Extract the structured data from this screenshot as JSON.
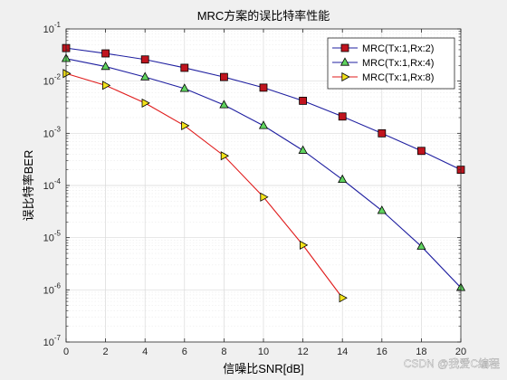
{
  "chart_data": {
    "type": "line",
    "title": "MRC方案的误比特率性能",
    "xlabel": "信噪比SNR[dB]",
    "ylabel": "误比特率BER",
    "xlim": [
      0,
      20
    ],
    "ylim_log10": [
      -7,
      -1
    ],
    "y_scale": "log",
    "x_ticks": [
      "0",
      "2",
      "4",
      "6",
      "8",
      "10",
      "12",
      "14",
      "16",
      "18",
      "20"
    ],
    "y_tick_labels": [
      {
        "base": "10",
        "exp": "-1"
      },
      {
        "base": "10",
        "exp": "-2"
      },
      {
        "base": "10",
        "exp": "-3"
      },
      {
        "base": "10",
        "exp": "-4"
      },
      {
        "base": "10",
        "exp": "-5"
      },
      {
        "base": "10",
        "exp": "-6"
      },
      {
        "base": "10",
        "exp": "-7"
      }
    ],
    "grid": true,
    "legend_position": "top-right",
    "series": [
      {
        "name": "MRC(Tx:1,Rx:2)",
        "color": "#1f1fa0",
        "marker": "square",
        "marker_color": "#c0141e",
        "x": [
          0,
          2,
          4,
          6,
          8,
          10,
          12,
          14,
          16,
          18,
          20
        ],
        "y": [
          0.043,
          0.034,
          0.026,
          0.018,
          0.012,
          0.0075,
          0.0042,
          0.0021,
          0.001,
          0.00046,
          0.0002
        ]
      },
      {
        "name": "MRC(Tx:1,Rx:4)",
        "color": "#1f1fa0",
        "marker": "triangle-up",
        "marker_color": "#5fd35f",
        "x": [
          0,
          2,
          4,
          6,
          8,
          10,
          12,
          14,
          16,
          18,
          20
        ],
        "y": [
          0.027,
          0.019,
          0.012,
          0.0072,
          0.0035,
          0.0014,
          0.00047,
          0.00013,
          3.3e-05,
          6.8e-06,
          1.1e-06
        ]
      },
      {
        "name": "MRC(Tx:1,Rx:8)",
        "color": "#e01b1b",
        "marker": "triangle-right",
        "marker_color": "#f2e21a",
        "x": [
          0,
          2,
          4,
          6,
          8,
          10,
          12,
          14
        ],
        "y": [
          0.014,
          0.0083,
          0.0038,
          0.0014,
          0.00037,
          6e-05,
          7.2e-06,
          7e-07
        ]
      }
    ]
  },
  "watermark": "CSDN @我爱C编程"
}
